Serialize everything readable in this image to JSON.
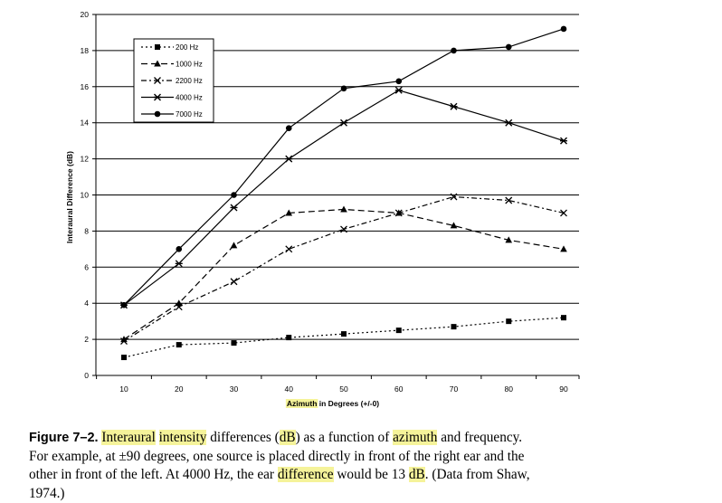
{
  "chart_data": {
    "type": "line",
    "xlabel_parts": [
      "Azimuth",
      " in Degrees (+/-0)"
    ],
    "ylabel": "Interaural Difference (dB)",
    "xlim": [
      10,
      90
    ],
    "ylim": [
      0,
      20
    ],
    "x": [
      10,
      20,
      30,
      40,
      50,
      60,
      70,
      80,
      90
    ],
    "y_ticks": [
      0,
      2,
      4,
      6,
      8,
      10,
      12,
      14,
      16,
      18,
      20
    ],
    "grid": "horizontal",
    "legend_position": "top-left",
    "series": [
      {
        "name": "200 Hz",
        "marker": "square",
        "dash": "2,3",
        "values": [
          1.0,
          1.7,
          1.8,
          2.1,
          2.3,
          2.5,
          2.7,
          3.0,
          3.2
        ]
      },
      {
        "name": "1000 Hz",
        "marker": "triangle",
        "dash": "7,4",
        "values": [
          2.0,
          4.0,
          7.2,
          9.0,
          9.2,
          9.0,
          8.3,
          7.5,
          7.0
        ]
      },
      {
        "name": "2200 Hz",
        "marker": "x",
        "dash": "6,3,2,3",
        "values": [
          1.9,
          3.8,
          5.2,
          7.0,
          8.1,
          9.0,
          9.9,
          9.7,
          9.0
        ]
      },
      {
        "name": "4000 Hz",
        "marker": "asterisk",
        "dash": "",
        "values": [
          3.9,
          6.2,
          9.3,
          12.0,
          14.0,
          15.8,
          14.9,
          14.0,
          13.0
        ]
      },
      {
        "name": "7000 Hz",
        "marker": "circle",
        "dash": "",
        "values": [
          3.9,
          7.0,
          10.0,
          13.7,
          15.9,
          16.3,
          18.0,
          18.2,
          19.2
        ]
      }
    ]
  },
  "caption": {
    "figure_label": "Figure 7–2.",
    "line1": [
      {
        "t": " ",
        "hl": false
      },
      {
        "t": "Interaural",
        "hl": true
      },
      {
        "t": " ",
        "hl": false
      },
      {
        "t": "intensity",
        "hl": true
      },
      {
        "t": " differences (",
        "hl": false
      },
      {
        "t": "dB",
        "hl": true
      },
      {
        "t": ") as a function of ",
        "hl": false
      },
      {
        "t": "azimuth",
        "hl": true
      },
      {
        "t": " and frequency.",
        "hl": false
      }
    ],
    "line2": [
      {
        "t": "For example, at ±90 degrees, one source is placed directly in front of the right ear and the",
        "hl": false
      }
    ],
    "line3": [
      {
        "t": "other in front of the left. At 4000 Hz, the ear ",
        "hl": false
      },
      {
        "t": "difference",
        "hl": true
      },
      {
        "t": " would be 13 ",
        "hl": false
      },
      {
        "t": "dB",
        "hl": true
      },
      {
        "t": ". (Data from Shaw,",
        "hl": false
      }
    ],
    "line4": [
      {
        "t": "1974.)",
        "hl": false
      }
    ],
    "highlight_color": "#f5f39a"
  }
}
